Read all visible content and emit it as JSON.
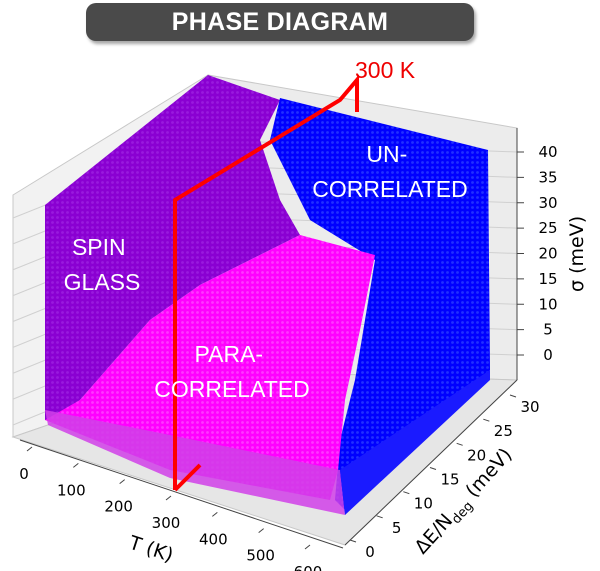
{
  "chart_data": {
    "type": "3d-surface",
    "title": "PHASE DIAGRAM",
    "x_axis": {
      "label": "T (K)",
      "ticks": [
        0,
        100,
        200,
        300,
        400,
        500,
        600
      ],
      "range": [
        0,
        600
      ]
    },
    "y_axis": {
      "label_main": "ΔE/N",
      "label_sub": "deg",
      "label_unit": " (meV)",
      "ticks": [
        0,
        5,
        10,
        15,
        20,
        25,
        30
      ],
      "range": [
        0,
        30
      ]
    },
    "z_axis": {
      "label": "σ (meV)",
      "ticks": [
        0,
        5,
        10,
        15,
        20,
        25,
        30,
        35,
        40
      ],
      "range": [
        0,
        40
      ]
    },
    "regions": [
      {
        "name": "SPIN GLASS",
        "lines": [
          "SPIN",
          "GLASS"
        ],
        "color": "#8a00d2"
      },
      {
        "name": "PARA-CORRELATED",
        "lines": [
          "PARA-",
          "CORRELATED"
        ],
        "color": "#ff00ff"
      },
      {
        "name": "UN-CORRELATED",
        "lines": [
          "UN-",
          "CORRELATED"
        ],
        "color": "#0000ff"
      }
    ],
    "marker": {
      "label": "300 K",
      "T": 300,
      "color": "#ff0000"
    },
    "grid": true
  }
}
